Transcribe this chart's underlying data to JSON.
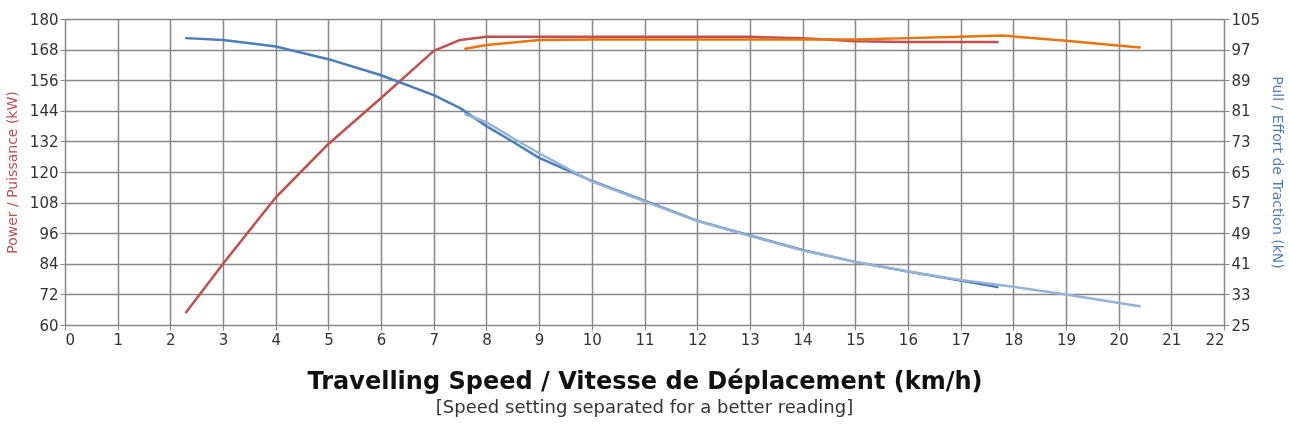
{
  "chart_data": {
    "type": "line",
    "xlabel": "Travelling Speed / Vitesse de Déplacement (km/h)",
    "ylabel": "Power / Puissance (kW)",
    "y2label": "Pull / Effort de Traction (kN)",
    "annotations": [
      "[Speed setting separated for a better reading]"
    ],
    "xlim": [
      0,
      22
    ],
    "xticks": [
      0,
      1,
      2,
      3,
      4,
      5,
      6,
      7,
      8,
      9,
      10,
      11,
      12,
      13,
      14,
      15,
      16,
      17,
      18,
      19,
      20,
      21,
      22
    ],
    "ylim": [
      60,
      180
    ],
    "yticks": [
      60,
      72,
      84,
      96,
      108,
      120,
      132,
      144,
      156,
      168,
      180
    ],
    "y2lim": [
      25,
      105
    ],
    "y2ticks": [
      25,
      33,
      41,
      49,
      57,
      65,
      73,
      81,
      89,
      97,
      105
    ],
    "grid": true,
    "legend": false,
    "marker": "none",
    "line_style": "solid",
    "series": [
      {
        "color": "#c0504d",
        "x": [
          2.3,
          3,
          4,
          5,
          6,
          7,
          7.5,
          8,
          9,
          10,
          11,
          12,
          13,
          14,
          15,
          16,
          17,
          17.7
        ],
        "values": [
          65,
          84,
          110,
          131,
          149,
          167.5,
          171.8,
          173,
          173,
          173,
          173,
          173,
          173,
          172.5,
          171.3,
          171,
          171,
          171
        ]
      },
      {
        "color": "#e8730f",
        "x": [
          7.6,
          8,
          9,
          10,
          11,
          12,
          13,
          14,
          15,
          16,
          17,
          17.8,
          19,
          20.4
        ],
        "values": [
          168.3,
          169.8,
          171.8,
          172,
          172,
          172,
          172,
          172,
          172,
          172.5,
          173,
          173.5,
          171.5,
          168.8
        ]
      },
      {
        "color": "#4a7ebb",
        "axis": "y2",
        "x": [
          2.3,
          3,
          4,
          5,
          6,
          7,
          7.5,
          8,
          8.5,
          9,
          10,
          11,
          12,
          13,
          14,
          15,
          16,
          17,
          17.7
        ],
        "values": [
          100,
          99.5,
          97.8,
          94.5,
          90.3,
          85.1,
          81.7,
          77,
          72.9,
          68.7,
          62.7,
          57.5,
          52.3,
          48.4,
          44.6,
          41.5,
          39,
          36.6,
          34.9
        ]
      },
      {
        "color": "#95b3d7",
        "axis": "y2",
        "x": [
          7.6,
          8,
          8.5,
          9,
          10,
          11,
          12,
          13,
          14,
          15,
          16,
          17,
          18,
          19,
          20.4
        ],
        "values": [
          80.1,
          78,
          73.9,
          69.9,
          62.5,
          57.3,
          52.2,
          48.3,
          44.5,
          41.5,
          39,
          36.8,
          35,
          33,
          29.9
        ]
      }
    ]
  }
}
